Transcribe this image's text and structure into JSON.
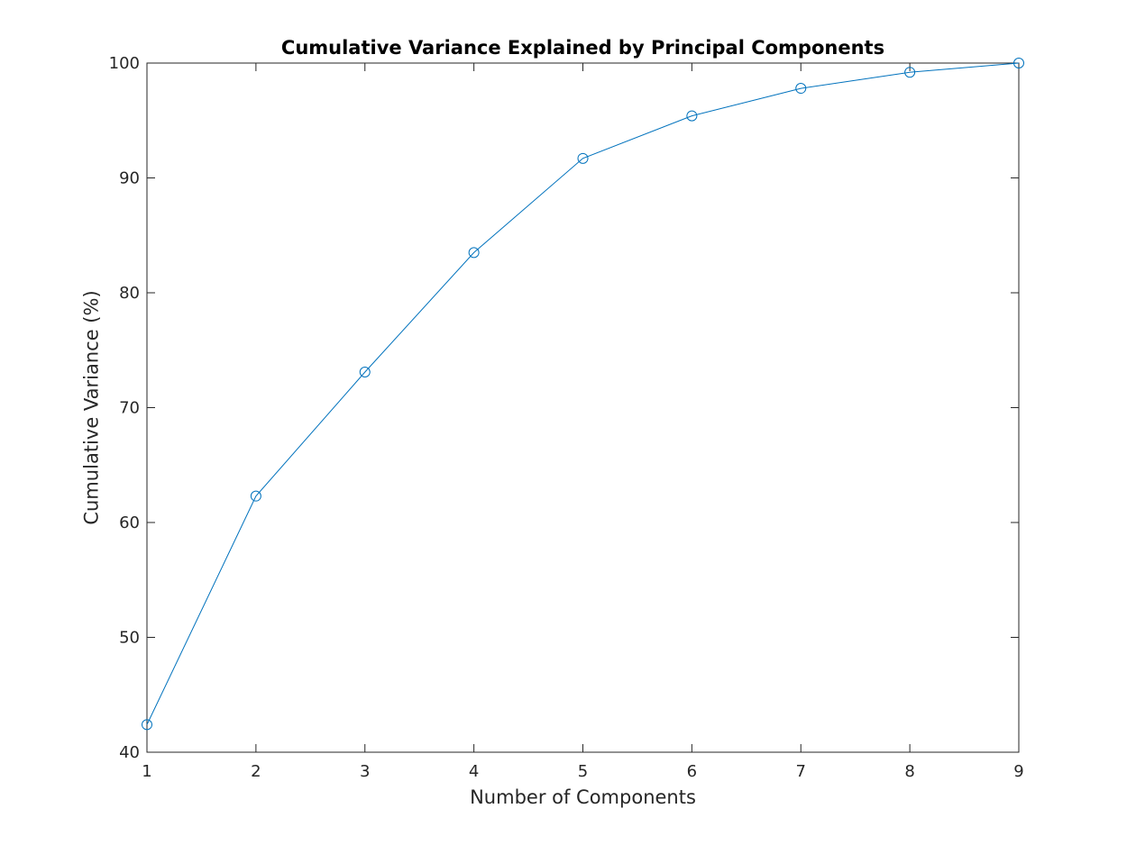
{
  "chart_data": {
    "type": "line",
    "title": "Cumulative Variance Explained by Principal Components",
    "xlabel": "Number of Components",
    "ylabel": "Cumulative Variance (%)",
    "xlim": [
      1,
      9
    ],
    "ylim": [
      40,
      100
    ],
    "x_ticks": [
      1,
      2,
      3,
      4,
      5,
      6,
      7,
      8,
      9
    ],
    "y_ticks": [
      40,
      50,
      60,
      70,
      80,
      90,
      100
    ],
    "grid": false,
    "legend": "none",
    "marker": "circle",
    "series_color": "#0072bd",
    "series": [
      {
        "x": [
          1,
          2,
          3,
          4,
          5,
          6,
          7,
          8,
          9
        ],
        "values": [
          42.4,
          62.3,
          73.1,
          83.5,
          91.7,
          95.4,
          97.8,
          99.2,
          100.0
        ]
      }
    ]
  }
}
